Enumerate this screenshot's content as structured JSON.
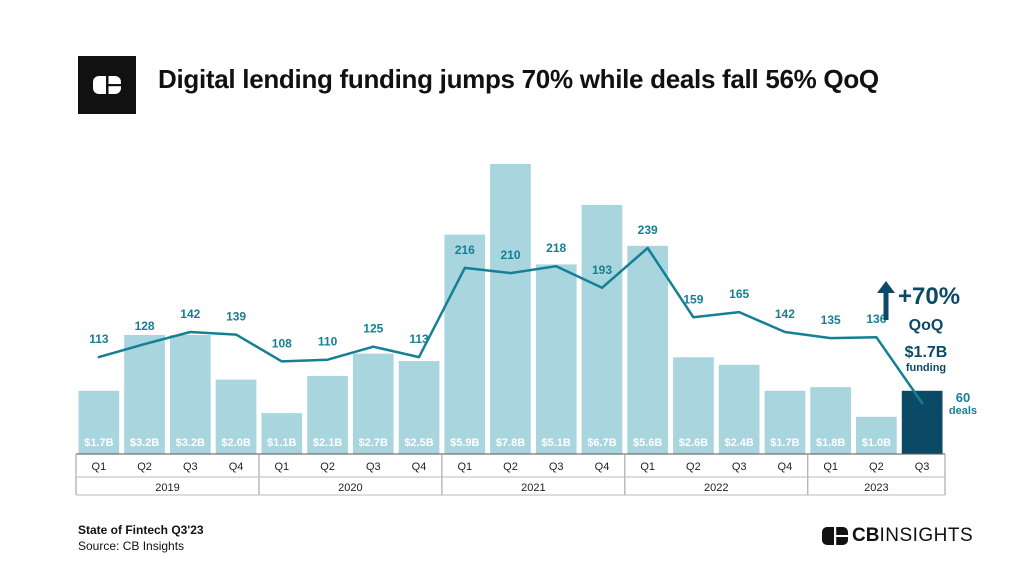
{
  "header": {
    "title": "Digital lending funding jumps 70% while deals fall 56% QoQ",
    "logo_icon": "cb-logo-icon"
  },
  "chart_data": {
    "type": "bar",
    "title": "Digital lending funding jumps 70% while deals fall 56% QoQ",
    "categories": [
      "Q1",
      "Q2",
      "Q3",
      "Q4",
      "Q1",
      "Q2",
      "Q3",
      "Q4",
      "Q1",
      "Q2",
      "Q3",
      "Q4",
      "Q1",
      "Q2",
      "Q3",
      "Q4",
      "Q1",
      "Q2",
      "Q3"
    ],
    "years": [
      {
        "label": "2019",
        "count": 4
      },
      {
        "label": "2020",
        "count": 4
      },
      {
        "label": "2021",
        "count": 4
      },
      {
        "label": "2022",
        "count": 4
      },
      {
        "label": "2023",
        "count": 3
      }
    ],
    "series": [
      {
        "type": "bar",
        "values": [
          1.7,
          3.2,
          3.2,
          2.0,
          1.1,
          2.1,
          2.7,
          2.5,
          5.9,
          7.8,
          5.1,
          6.7,
          5.6,
          2.6,
          2.4,
          1.7,
          1.8,
          1.0,
          1.7
        ],
        "labels": [
          "$1.7B",
          "$3.2B",
          "$3.2B",
          "$2.0B",
          "$1.1B",
          "$2.1B",
          "$2.7B",
          "$2.5B",
          "$5.9B",
          "$7.8B",
          "$5.1B",
          "$6.7B",
          "$5.6B",
          "$2.6B",
          "$2.4B",
          "$1.7B",
          "$1.8B",
          "$1.0B",
          ""
        ]
      },
      {
        "type": "line",
        "values": [
          113,
          128,
          142,
          139,
          108,
          110,
          125,
          113,
          216,
          210,
          218,
          193,
          239,
          159,
          165,
          142,
          135,
          136,
          60
        ],
        "labels": [
          "113",
          "128",
          "142",
          "139",
          "108",
          "110",
          "125",
          "113",
          "216",
          "210",
          "218",
          "193",
          "239",
          "159",
          "165",
          "142",
          "135",
          "136",
          "60"
        ]
      }
    ],
    "highlight": {
      "index": 18,
      "percent": "+70%",
      "period": "QoQ",
      "funding_value": "$1.7B",
      "funding_label": "funding",
      "deals_value": "60",
      "deals_label": "deals"
    },
    "colors": {
      "bar": "#a8d5de",
      "bar_highlight": "#0b4a66",
      "line": "#157f96",
      "line_label": "#157f96",
      "bar_label": "#ffffff",
      "arrow": "#0b4a66",
      "axis": "#555555"
    },
    "grid": false,
    "legend": "none"
  },
  "footer": {
    "report": "State of Fintech Q3'23",
    "source": "Source: CB Insights",
    "brand_bold": "CB",
    "brand_regular": "INSIGHTS",
    "brand_icon": "cb-insights-logo-icon"
  }
}
